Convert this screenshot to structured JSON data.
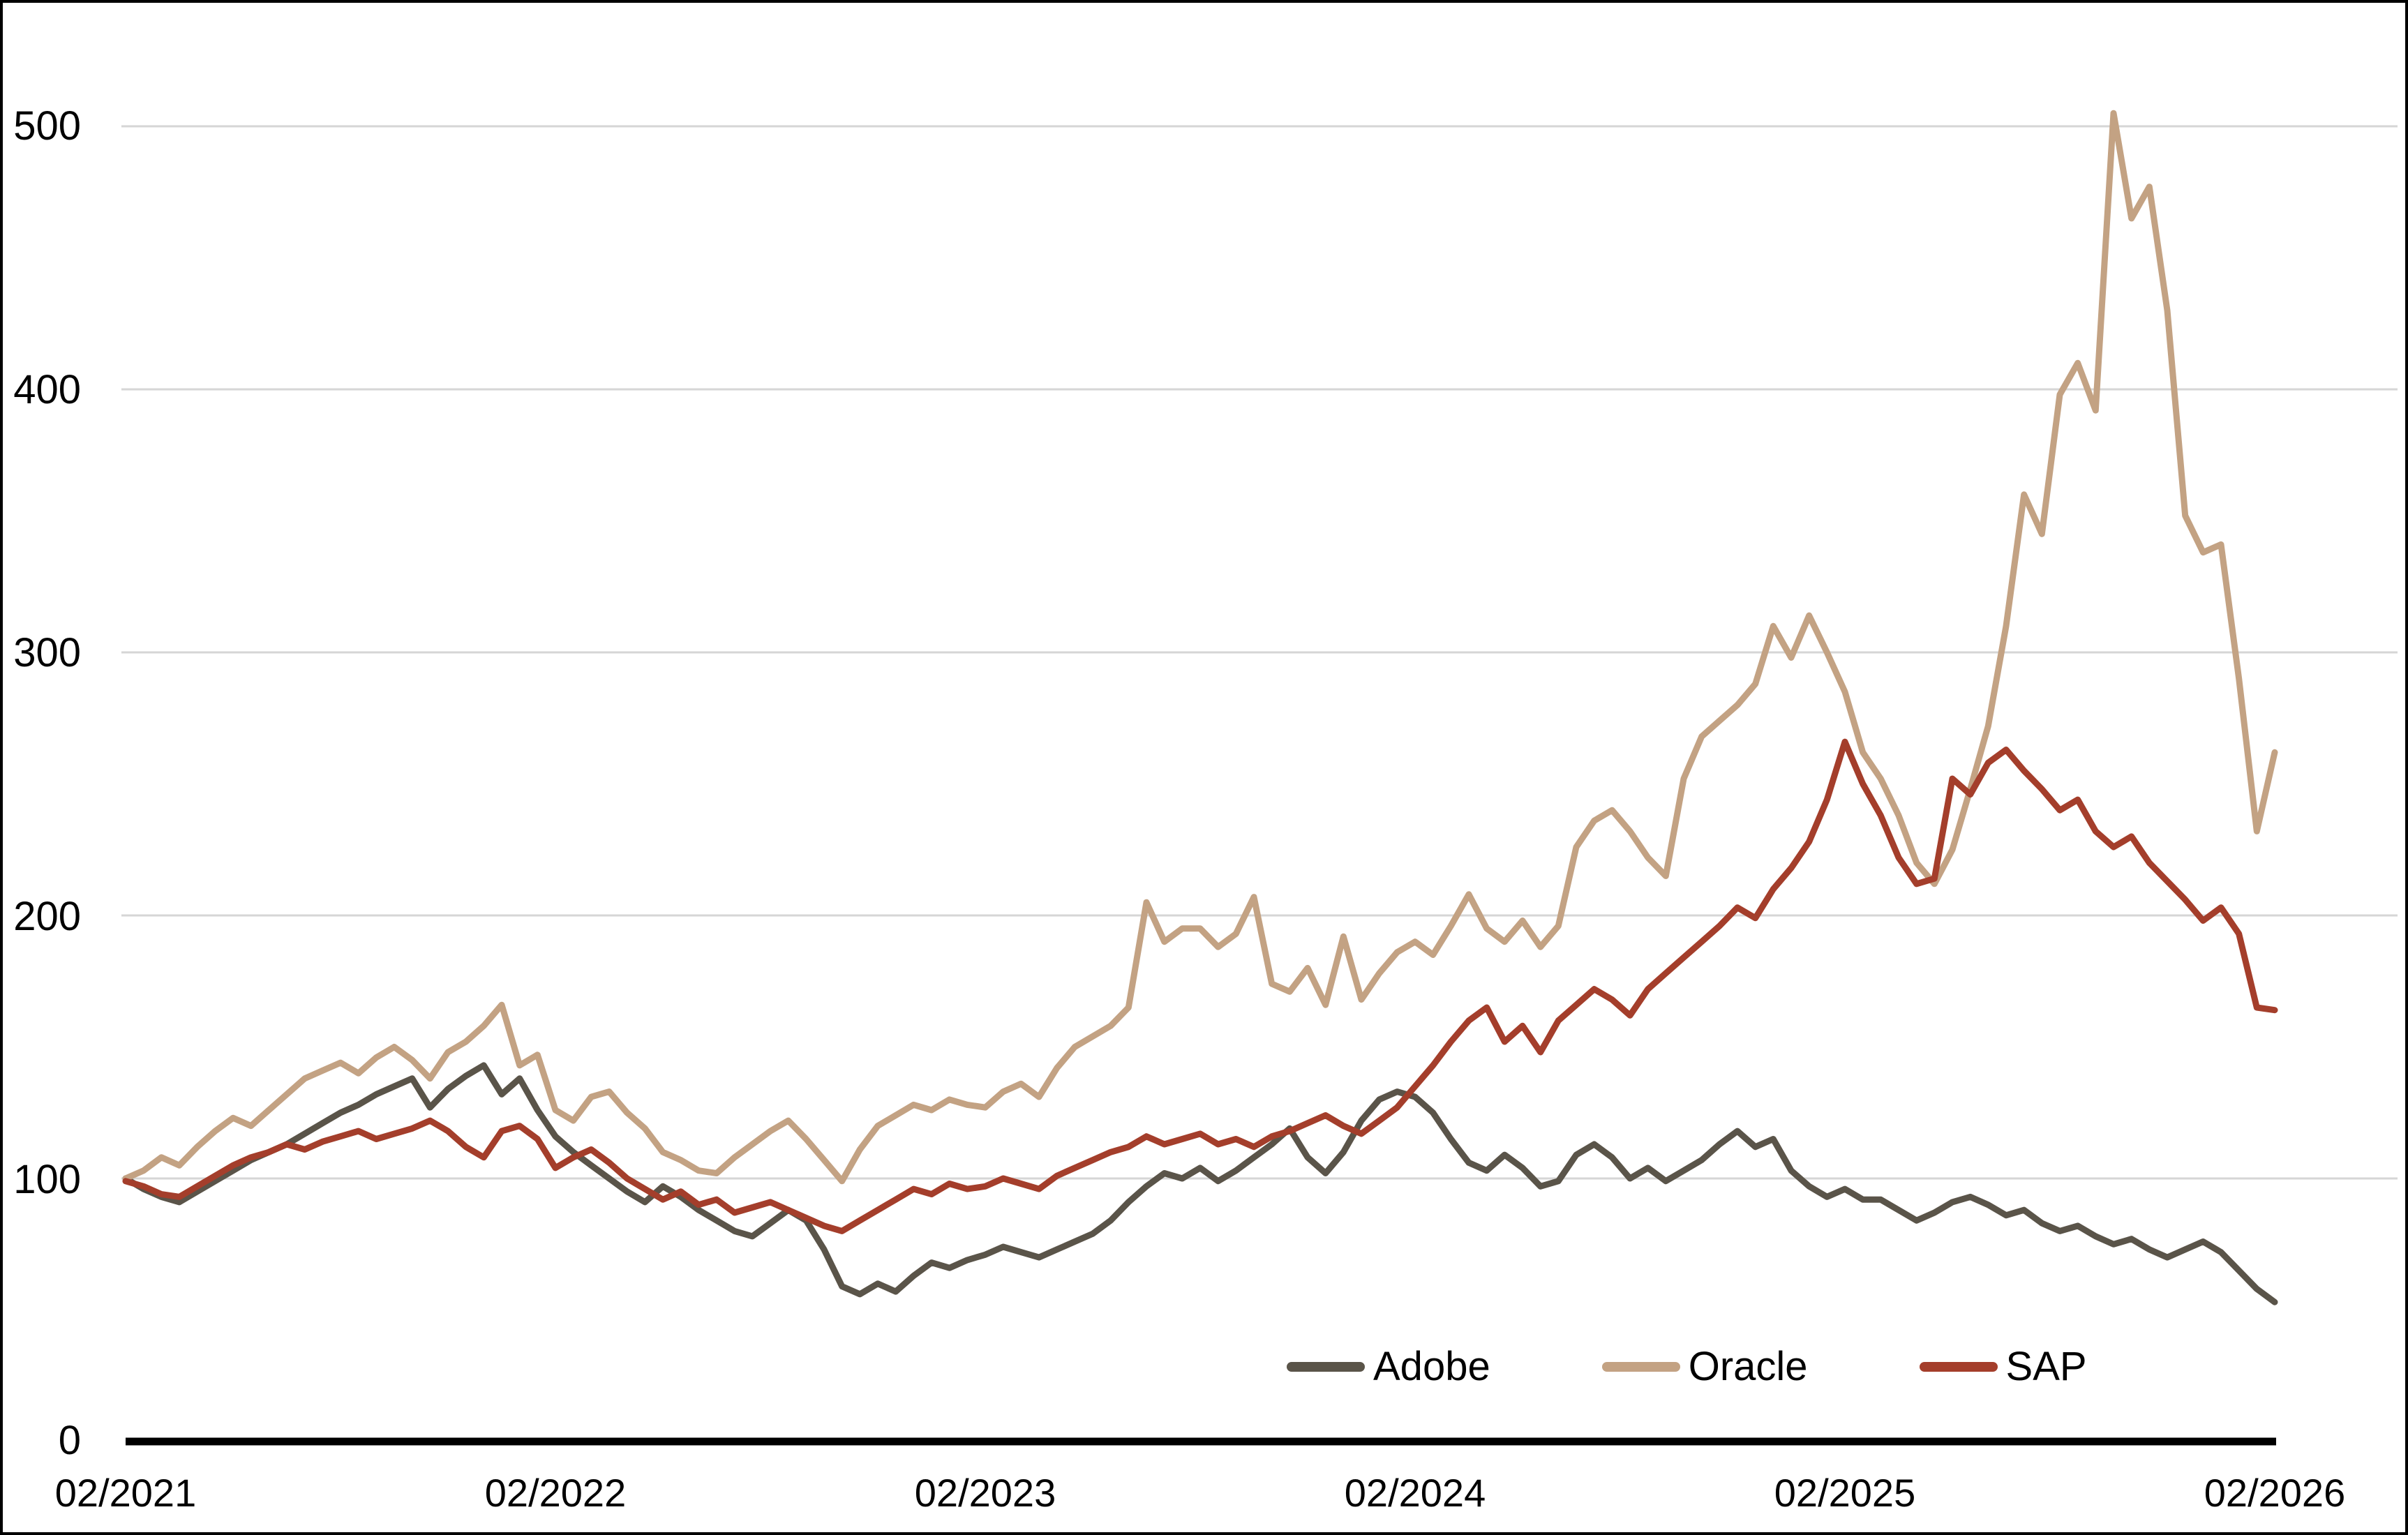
{
  "chart_data": {
    "type": "line",
    "title": "",
    "xlabel": "",
    "ylabel": "",
    "grid": true,
    "legend_position": "inside-bottom-right",
    "x_axis": {
      "tick_labels": [
        "02/2021",
        "02/2022",
        "02/2023",
        "02/2024",
        "02/2025",
        "02/2026"
      ],
      "unit": "month/year",
      "span_months": 60,
      "points_step_months": 0.5
    },
    "y_axis": {
      "tick_labels": [
        "0",
        "100",
        "200",
        "300",
        "400",
        "500"
      ],
      "min": 0,
      "max": 520,
      "gridline_values": [
        100,
        200,
        300,
        400,
        500
      ]
    },
    "colors": {
      "gridline": "#d6d6d6",
      "axis": "#000000",
      "background": "#ffffff"
    },
    "series": [
      {
        "name": "Adobe",
        "color": "#5a5449",
        "values": [
          100,
          96,
          93,
          91,
          95,
          99,
          103,
          107,
          110,
          113,
          117,
          121,
          125,
          128,
          132,
          135,
          138,
          127,
          134,
          139,
          143,
          132,
          138,
          126,
          116,
          110,
          105,
          100,
          95,
          91,
          97,
          93,
          88,
          84,
          80,
          78,
          83,
          88,
          84,
          73,
          59,
          56,
          60,
          57,
          63,
          68,
          66,
          69,
          71,
          74,
          72,
          70,
          73,
          76,
          79,
          84,
          91,
          97,
          102,
          100,
          104,
          99,
          103,
          108,
          113,
          119,
          108,
          102,
          110,
          122,
          130,
          133,
          131,
          125,
          115,
          106,
          103,
          109,
          104,
          97,
          99,
          109,
          113,
          108,
          100,
          104,
          99,
          103,
          107,
          113,
          118,
          112,
          115,
          103,
          97,
          93,
          96,
          92,
          92,
          88,
          84,
          87,
          91,
          93,
          90,
          86,
          88,
          83,
          80,
          82,
          78,
          75,
          77,
          73,
          70,
          73,
          76,
          72,
          65,
          58,
          53
        ]
      },
      {
        "name": "Oracle",
        "color": "#c3a283",
        "values": [
          100,
          103,
          108,
          105,
          112,
          118,
          123,
          120,
          126,
          132,
          138,
          141,
          144,
          140,
          146,
          150,
          145,
          138,
          148,
          152,
          158,
          166,
          143,
          147,
          126,
          122,
          131,
          133,
          125,
          119,
          110,
          107,
          103,
          102,
          108,
          113,
          118,
          122,
          115,
          107,
          99,
          111,
          120,
          124,
          128,
          126,
          130,
          128,
          127,
          133,
          136,
          131,
          142,
          150,
          154,
          158,
          165,
          205,
          190,
          195,
          195,
          188,
          193,
          207,
          174,
          171,
          180,
          166,
          192,
          168,
          178,
          186,
          190,
          185,
          196,
          208,
          195,
          190,
          198,
          188,
          196,
          226,
          236,
          240,
          232,
          222,
          215,
          252,
          268,
          274,
          280,
          288,
          310,
          298,
          314,
          300,
          285,
          262,
          252,
          238,
          220,
          212,
          225,
          248,
          272,
          310,
          360,
          345,
          398,
          410,
          392,
          505,
          465,
          477,
          430,
          352,
          338,
          341,
          290,
          232,
          262
        ]
      },
      {
        "name": "SAP",
        "color": "#a43e2b",
        "values": [
          99,
          97,
          94,
          93,
          97,
          101,
          105,
          108,
          110,
          113,
          111,
          114,
          116,
          118,
          115,
          117,
          119,
          122,
          118,
          112,
          108,
          118,
          120,
          115,
          104,
          108,
          111,
          106,
          100,
          96,
          92,
          95,
          90,
          92,
          87,
          89,
          91,
          88,
          85,
          82,
          80,
          84,
          88,
          92,
          96,
          94,
          98,
          96,
          97,
          100,
          98,
          96,
          101,
          104,
          107,
          110,
          112,
          116,
          113,
          115,
          117,
          113,
          115,
          112,
          116,
          118,
          121,
          124,
          120,
          117,
          122,
          127,
          135,
          143,
          152,
          160,
          165,
          152,
          158,
          148,
          160,
          166,
          172,
          168,
          162,
          172,
          178,
          184,
          190,
          196,
          203,
          199,
          210,
          218,
          228,
          244,
          266,
          250,
          238,
          222,
          212,
          214,
          252,
          246,
          258,
          263,
          255,
          248,
          240,
          244,
          232,
          226,
          230,
          220,
          213,
          206,
          198,
          203,
          193,
          165,
          164
        ]
      }
    ]
  }
}
